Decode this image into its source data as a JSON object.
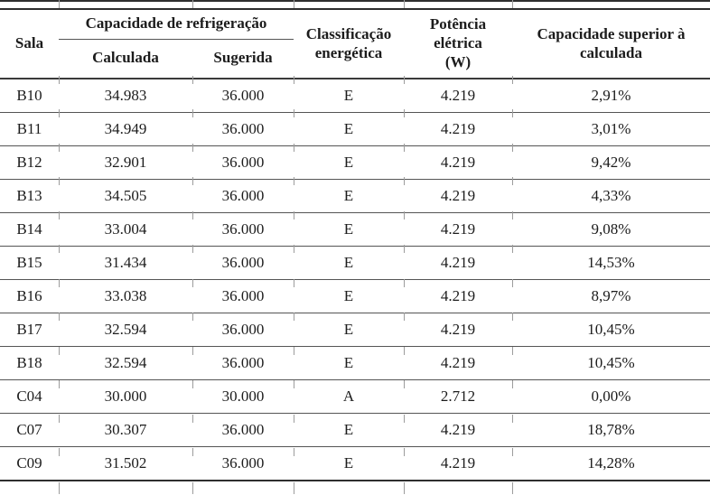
{
  "table": {
    "header": {
      "sala": "Sala",
      "group_capacidade": "Capacidade de refrigeração",
      "calculada": "Calculada",
      "sugerida": "Sugerida",
      "classificacao": "Classificação\nenergética",
      "potencia": "Potência\nelétrica\n(W)",
      "capacidade_superior": "Capacidade superior à\ncalculada"
    },
    "rows": [
      {
        "sala": "B10",
        "calculada": "34.983",
        "sugerida": "36.000",
        "classificacao": "E",
        "potencia": "4.219",
        "superior": "2,91%"
      },
      {
        "sala": "B11",
        "calculada": "34.949",
        "sugerida": "36.000",
        "classificacao": "E",
        "potencia": "4.219",
        "superior": "3,01%"
      },
      {
        "sala": "B12",
        "calculada": "32.901",
        "sugerida": "36.000",
        "classificacao": "E",
        "potencia": "4.219",
        "superior": "9,42%"
      },
      {
        "sala": "B13",
        "calculada": "34.505",
        "sugerida": "36.000",
        "classificacao": "E",
        "potencia": "4.219",
        "superior": "4,33%"
      },
      {
        "sala": "B14",
        "calculada": "33.004",
        "sugerida": "36.000",
        "classificacao": "E",
        "potencia": "4.219",
        "superior": "9,08%"
      },
      {
        "sala": "B15",
        "calculada": "31.434",
        "sugerida": "36.000",
        "classificacao": "E",
        "potencia": "4.219",
        "superior": "14,53%"
      },
      {
        "sala": "B16",
        "calculada": "33.038",
        "sugerida": "36.000",
        "classificacao": "E",
        "potencia": "4.219",
        "superior": "8,97%"
      },
      {
        "sala": "B17",
        "calculada": "32.594",
        "sugerida": "36.000",
        "classificacao": "E",
        "potencia": "4.219",
        "superior": "10,45%"
      },
      {
        "sala": "B18",
        "calculada": "32.594",
        "sugerida": "36.000",
        "classificacao": "E",
        "potencia": "4.219",
        "superior": "10,45%"
      },
      {
        "sala": "C04",
        "calculada": "30.000",
        "sugerida": "30.000",
        "classificacao": "A",
        "potencia": "2.712",
        "superior": "0,00%"
      },
      {
        "sala": "C07",
        "calculada": "30.307",
        "sugerida": "36.000",
        "classificacao": "E",
        "potencia": "4.219",
        "superior": "18,78%"
      },
      {
        "sala": "C09",
        "calculada": "31.502",
        "sugerida": "36.000",
        "classificacao": "E",
        "potencia": "4.219",
        "superior": "14,28%"
      }
    ]
  },
  "colors": {
    "background": "#ffffff",
    "text": "#1c1c1c",
    "rule_dark": "#2e2e2e",
    "rule_medium": "#555555",
    "tick_gray": "#9c9c9c"
  }
}
